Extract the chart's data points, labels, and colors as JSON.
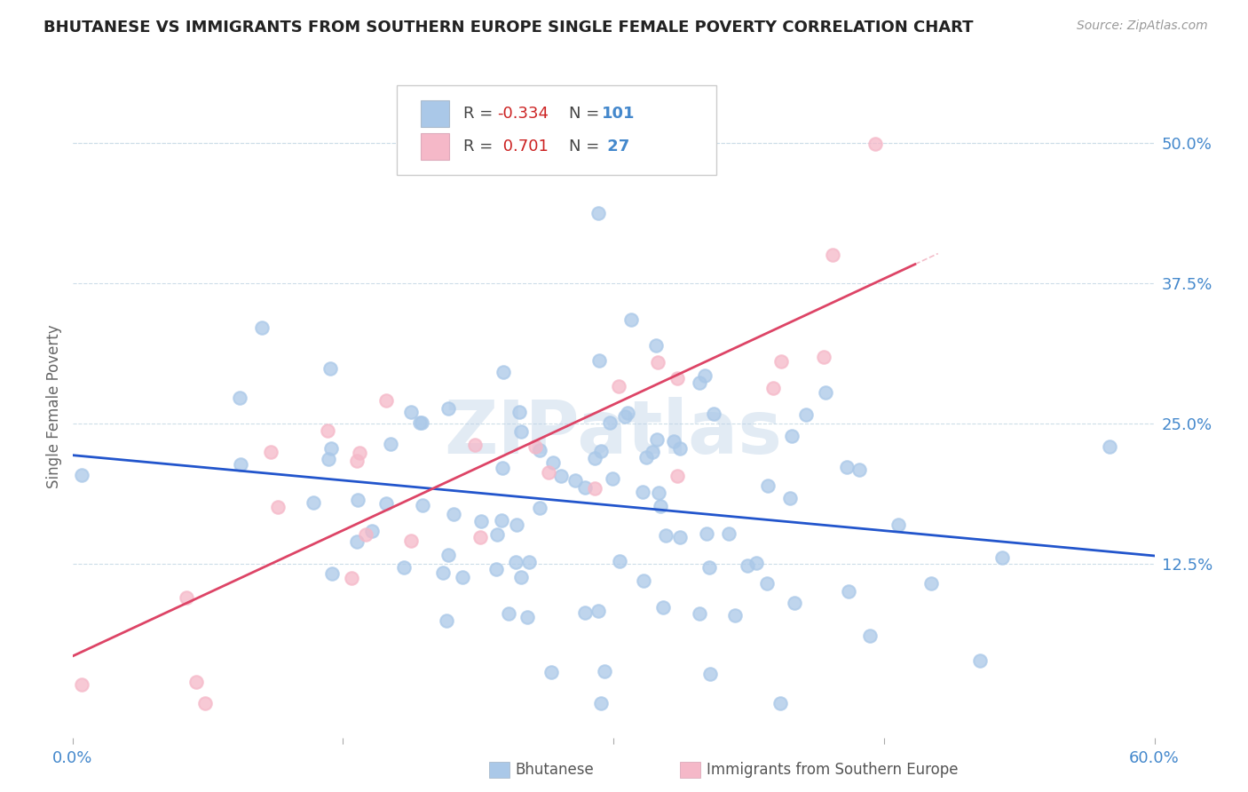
{
  "title": "BHUTANESE VS IMMIGRANTS FROM SOUTHERN EUROPE SINGLE FEMALE POVERTY CORRELATION CHART",
  "source": "Source: ZipAtlas.com",
  "ylabel": "Single Female Poverty",
  "ytick_labels": [
    "50.0%",
    "37.5%",
    "25.0%",
    "12.5%"
  ],
  "ytick_vals": [
    0.5,
    0.375,
    0.25,
    0.125
  ],
  "xmin": 0.0,
  "xmax": 0.6,
  "ymin": -0.03,
  "ymax": 0.56,
  "legend_label1": "Bhutanese",
  "legend_label2": "Immigrants from Southern Europe",
  "R1": -0.334,
  "N1": 101,
  "R2": 0.701,
  "N2": 27,
  "color1": "#aac8e8",
  "color2": "#f5b8c8",
  "line_color1": "#2255cc",
  "line_color2": "#dd4466",
  "title_color": "#222222",
  "axis_color": "#4488cc",
  "watermark": "ZIPatlas",
  "seed": 12
}
